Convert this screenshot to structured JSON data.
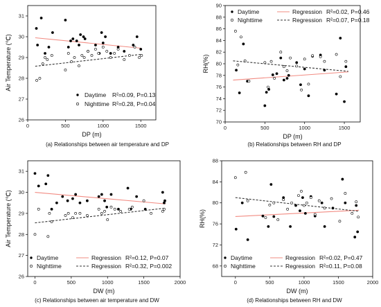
{
  "chart_data": [
    {
      "type": "scatter",
      "panel": "a",
      "caption": "(a) Relationships between air temperature and DP",
      "xlabel": "DP (m)",
      "ylabel": "Air Temperature (℃)",
      "xlim": [
        0,
        1700
      ],
      "ylim": [
        26,
        31.5
      ],
      "xticks": [
        0,
        500,
        1000,
        1500
      ],
      "yticks": [
        26,
        27,
        28,
        29,
        30,
        31
      ],
      "legend": {
        "position": "bottom-right",
        "entries": [
          {
            "label": "Daytime",
            "stat": "R²=0.09, P=0.13"
          },
          {
            "label": "Nighttime",
            "stat": "R²=0.28, P=0.04"
          }
        ]
      },
      "series": [
        {
          "name": "Daytime",
          "marker": "filled",
          "color": "#000000",
          "x": [
            115,
            130,
            180,
            230,
            280,
            330,
            500,
            540,
            570,
            600,
            650,
            680,
            700,
            740,
            760,
            800,
            900,
            950,
            980,
            1000,
            1030,
            1100,
            1200,
            1280,
            1400,
            1450,
            1500
          ],
          "y": [
            30.4,
            29.6,
            30.9,
            29.2,
            29.5,
            30.2,
            30.8,
            29.5,
            29.8,
            29.9,
            29.8,
            29.6,
            30.1,
            30.0,
            29.9,
            29.3,
            29.6,
            29.2,
            30.2,
            29.7,
            30.0,
            29.2,
            29.5,
            29.3,
            29.6,
            30.0,
            29.4
          ]
        },
        {
          "name": "Nighttime",
          "marker": "open",
          "color": "#000000",
          "x": [
            120,
            160,
            200,
            230,
            260,
            320,
            500,
            540,
            580,
            620,
            680,
            720,
            750,
            800,
            850,
            900,
            940,
            1000,
            1050,
            1100,
            1150,
            1200,
            1280,
            1350,
            1420,
            1480,
            1510
          ],
          "y": [
            27.9,
            28.0,
            28.7,
            29.0,
            28.9,
            29.1,
            28.4,
            29.2,
            28.8,
            29.0,
            28.6,
            29.1,
            29.0,
            29.3,
            29.1,
            29.4,
            29.2,
            29.5,
            29.3,
            29.0,
            29.2,
            29.4,
            28.9,
            29.1,
            29.5,
            29.0,
            29.1
          ]
        }
      ],
      "regressions": [
        {
          "name": "Daytime",
          "style": "solid",
          "color": "#f28b82",
          "x": [
            100,
            1500
          ],
          "y": [
            29.95,
            29.45
          ]
        },
        {
          "name": "Nighttime",
          "style": "dashed",
          "color": "#333333",
          "x": [
            100,
            1500
          ],
          "y": [
            28.58,
            29.15
          ]
        }
      ]
    },
    {
      "type": "scatter",
      "panel": "b",
      "caption": "(b) Relationships between RH and DP",
      "xlabel": "DP (m)",
      "ylabel": "RH(%)",
      "xlim": [
        0,
        1700
      ],
      "ylim": [
        70,
        90
      ],
      "xticks": [
        0,
        500,
        1000,
        1500
      ],
      "yticks": [
        70,
        72,
        74,
        76,
        78,
        80,
        82,
        84,
        86,
        88,
        90
      ],
      "legend": {
        "position": "top",
        "entries": [
          {
            "label": "Daytime",
            "reg_label": "Regression",
            "stat": "R²=0.02, P=0.46"
          },
          {
            "label": "Nighttime",
            "reg_label": "Regression",
            "stat": "R²=0.07, P=0.18"
          }
        ]
      },
      "series": [
        {
          "name": "Daytime",
          "marker": "filled",
          "color": "#000000",
          "x": [
            140,
            180,
            230,
            280,
            500,
            520,
            550,
            600,
            650,
            700,
            740,
            780,
            800,
            900,
            950,
            1000,
            1050,
            1100,
            1200,
            1250,
            1400,
            1450,
            1500,
            1520
          ],
          "y": [
            78.9,
            75.0,
            83.4,
            77.0,
            72.8,
            75.1,
            75.6,
            78.1,
            78.3,
            81.0,
            77.2,
            77.5,
            78.0,
            80.2,
            76.4,
            79.1,
            74.5,
            81.3,
            81.5,
            78.9,
            74.8,
            84.4,
            73.5,
            79.5
          ]
        },
        {
          "name": "Nighttime",
          "marker": "open",
          "color": "#000000",
          "x": [
            130,
            160,
            200,
            250,
            300,
            500,
            540,
            580,
            620,
            700,
            740,
            780,
            820,
            900,
            960,
            1000,
            1050,
            1100,
            1200,
            1250,
            1400,
            1450,
            1520
          ],
          "y": [
            85.6,
            79.8,
            84.6,
            80.5,
            77.0,
            80.2,
            76.0,
            80.4,
            77.5,
            82.0,
            79.5,
            78.8,
            81.0,
            79.6,
            75.5,
            80.8,
            76.5,
            81.4,
            81.2,
            80.4,
            81.6,
            77.8,
            80.4
          ]
        }
      ],
      "regressions": [
        {
          "name": "Daytime",
          "style": "solid",
          "color": "#f28b82",
          "x": [
            100,
            1550
          ],
          "y": [
            77.2,
            78.6
          ]
        },
        {
          "name": "Nighttime",
          "style": "dashed",
          "color": "#333333",
          "x": [
            100,
            1550
          ],
          "y": [
            80.5,
            78.7
          ]
        }
      ]
    },
    {
      "type": "scatter",
      "panel": "c",
      "caption": "(c) Relationships between air temperature and DW",
      "xlabel": "DW (m)",
      "ylabel": "Air Temperature (℃)",
      "xlim": [
        -100,
        2000
      ],
      "ylim": [
        26,
        31.5
      ],
      "xticks": [
        0,
        500,
        1000,
        1500,
        2000
      ],
      "yticks": [
        26,
        27,
        28,
        29,
        30,
        31
      ],
      "legend": {
        "position": "bottom",
        "entries": [
          {
            "label": "Daytime",
            "reg_label": "Regression",
            "stat": "R²=0.12, P=0.07"
          },
          {
            "label": "Nighttime",
            "reg_label": "Regression",
            "stat": "R²=0.32, P=0.002"
          }
        ]
      },
      "series": [
        {
          "name": "Daytime",
          "marker": "filled",
          "color": "#000000",
          "x": [
            0,
            50,
            150,
            180,
            230,
            300,
            380,
            450,
            520,
            560,
            620,
            720,
            880,
            920,
            960,
            990,
            1050,
            1150,
            1280,
            1320,
            1400,
            1520,
            1760,
            1780,
            1790
          ],
          "y": [
            30.9,
            30.3,
            30.4,
            30.8,
            29.2,
            29.5,
            29.8,
            29.6,
            29.7,
            29.9,
            29.5,
            29.6,
            29.8,
            29.9,
            29.6,
            29.3,
            29.9,
            29.2,
            30.2,
            29.2,
            29.8,
            29.2,
            30.0,
            29.5,
            29.6
          ]
        },
        {
          "name": "Nighttime",
          "marker": "open",
          "color": "#000000",
          "x": [
            0,
            50,
            180,
            200,
            230,
            420,
            460,
            520,
            560,
            620,
            720,
            880,
            920,
            960,
            1000,
            1050,
            1100,
            1180,
            1300,
            1340,
            1500,
            1600,
            1760,
            1780
          ],
          "y": [
            28.0,
            29.2,
            27.9,
            29.0,
            28.6,
            28.9,
            29.0,
            28.8,
            29.0,
            29.0,
            28.9,
            29.2,
            29.0,
            29.1,
            28.7,
            29.3,
            29.2,
            29.1,
            29.2,
            29.3,
            29.6,
            29.0,
            29.1,
            29.2
          ]
        }
      ],
      "regressions": [
        {
          "name": "Daytime",
          "style": "solid",
          "color": "#f28b82",
          "x": [
            0,
            1800
          ],
          "y": [
            30.0,
            29.45
          ]
        },
        {
          "name": "Nighttime",
          "style": "dashed",
          "color": "#333333",
          "x": [
            0,
            1800
          ],
          "y": [
            28.55,
            29.25
          ]
        }
      ]
    },
    {
      "type": "scatter",
      "panel": "d",
      "caption": "(d) Relationships between RH and DW",
      "xlabel": "DW (m)",
      "ylabel": "RH(%)",
      "xlim": [
        -200,
        2000
      ],
      "ylim": [
        66,
        88
      ],
      "xticks": [
        0,
        500,
        1000,
        1500,
        2000
      ],
      "yticks": [
        68,
        72,
        76,
        80,
        84,
        88
      ],
      "legend": {
        "position": "bottom",
        "entries": [
          {
            "label": "Daytime",
            "reg_label": "Regression",
            "stat": "R²=0.02, P=0.47"
          },
          {
            "label": "Nighttime",
            "reg_label": "Regression",
            "stat": "R²=0.11, P=0.08"
          }
        ]
      },
      "series": [
        {
          "name": "Daytime",
          "marker": "filled",
          "color": "#000000",
          "x": [
            10,
            100,
            180,
            400,
            480,
            520,
            560,
            700,
            800,
            880,
            940,
            980,
            1020,
            1100,
            1160,
            1260,
            1300,
            1420,
            1560,
            1600,
            1740,
            1760,
            1780
          ],
          "y": [
            75.0,
            80.0,
            73.0,
            77.5,
            75.5,
            83.5,
            77.4,
            81.0,
            75.5,
            79.5,
            78.5,
            81.0,
            78.0,
            81.2,
            77.5,
            80.0,
            75.5,
            79.0,
            84.5,
            80.0,
            73.5,
            79.5,
            74.5
          ]
        },
        {
          "name": "Nighttime",
          "marker": "open",
          "color": "#000000",
          "x": [
            0,
            150,
            180,
            440,
            500,
            560,
            620,
            700,
            760,
            820,
            920,
            960,
            1000,
            1040,
            1100,
            1160,
            1220,
            1300,
            1400,
            1520,
            1600,
            1700,
            1760,
            1790
          ],
          "y": [
            84.8,
            85.8,
            80.4,
            77.2,
            79.6,
            80.0,
            76.8,
            80.6,
            78.8,
            80.0,
            81.4,
            82.2,
            79.5,
            80.0,
            81.0,
            77.8,
            80.4,
            79.0,
            80.8,
            76.5,
            81.8,
            78.0,
            80.2,
            77.3
          ]
        }
      ],
      "regressions": [
        {
          "name": "Daytime",
          "style": "solid",
          "color": "#f28b82",
          "x": [
            0,
            1800
          ],
          "y": [
            77.4,
            78.6
          ]
        },
        {
          "name": "Nighttime",
          "style": "dashed",
          "color": "#333333",
          "x": [
            0,
            1800
          ],
          "y": [
            81.0,
            78.4
          ]
        }
      ]
    }
  ]
}
